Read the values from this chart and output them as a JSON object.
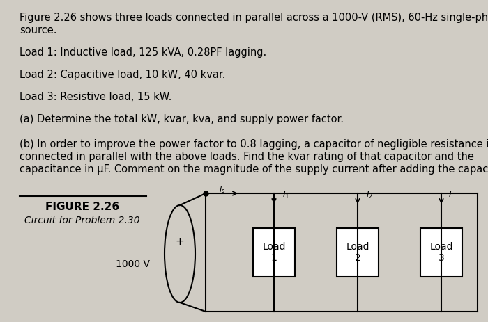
{
  "background_color": "#d0ccc4",
  "text_color": "#000000",
  "fig_width": 7.0,
  "fig_height": 4.63,
  "paragraph1_line1": "Figure 2.26 shows three loads connected in parallel across a 1000-V (RMS), 60-Hz single-phase",
  "paragraph1_line2": "source.",
  "paragraph2": "Load 1: Inductive load, 125 kVA, 0.28PF lagging.",
  "paragraph3": "Load 2: Capacitive load, 10 kW, 40 kvar.",
  "paragraph4": "Load 3: Resistive load, 15 kW.",
  "paragraph5": "(a) Determine the total kW, kvar, kva, and supply power factor.",
  "paragraph6_line1": "(b) In order to improve the power factor to 0.8 lagging, a capacitor of negligible resistance is",
  "paragraph6_line2": "connected in parallel with the above loads. Find the kvar rating of that capacitor and the",
  "paragraph6_line3": "capacitance in μF. Comment on the magnitude of the supply current after adding the capacitor.",
  "figure_label": "FIGURE 2.26",
  "circuit_label": "Circuit for Problem 2.30",
  "source_label": "1000 V",
  "load1_label": "Load\n1",
  "load2_label": "Load\n2",
  "load3_label": "Load\n3"
}
